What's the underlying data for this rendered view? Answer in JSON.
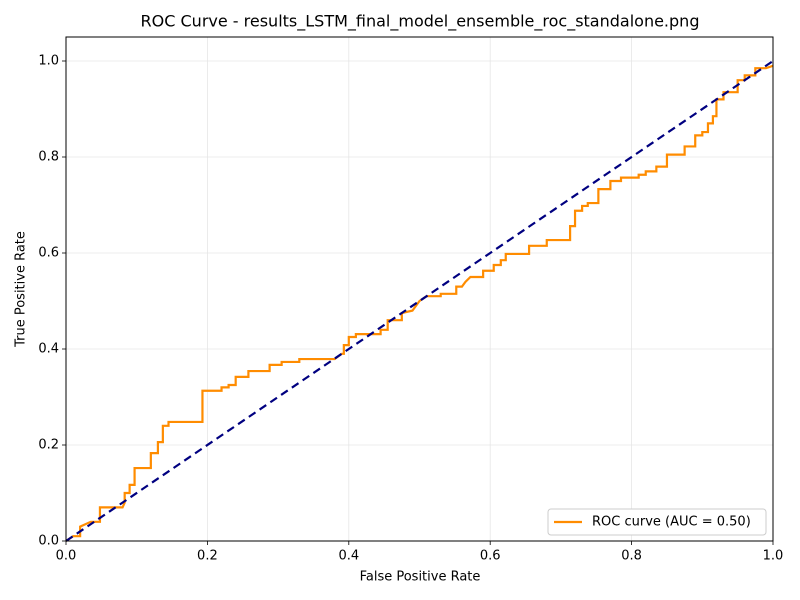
{
  "chart_data": {
    "type": "line",
    "title": "ROC Curve - results_LSTM_final_model_ensemble_roc_standalone.png",
    "x_label": "False Positive Rate",
    "y_label": "True Positive Rate",
    "xlim": [
      0,
      1
    ],
    "ylim": [
      0,
      1.05
    ],
    "xticks": [
      {
        "value": 0,
        "label": "0.0"
      },
      0.2,
      0.4,
      0.6,
      0.8,
      {
        "value": 1,
        "label": "1.0"
      }
    ],
    "yticks": [
      {
        "value": 0,
        "label": "0.0"
      },
      0.2,
      0.4,
      0.6,
      0.8,
      {
        "value": 1,
        "label": "1.0"
      }
    ],
    "grid": true,
    "legend": "lower right",
    "series": [
      {
        "name": "ROC curve (AUC = 0.50)",
        "color": "#ff8c00",
        "x": [
          0,
          0.01,
          0.02,
          0.02,
          0.035,
          0.048,
          0.048,
          0.08,
          0.083,
          0.083,
          0.09,
          0.09,
          0.097,
          0.097,
          0.12,
          0.12,
          0.13,
          0.13,
          0.137,
          0.137,
          0.145,
          0.145,
          0.193,
          0.193,
          0.22,
          0.22,
          0.23,
          0.23,
          0.24,
          0.24,
          0.258,
          0.258,
          0.288,
          0.288,
          0.305,
          0.305,
          0.33,
          0.33,
          0.38,
          0.39,
          0.393,
          0.393,
          0.4,
          0.4,
          0.41,
          0.41,
          0.445,
          0.445,
          0.455,
          0.455,
          0.475,
          0.475,
          0.49,
          0.5,
          0.51,
          0.53,
          0.53,
          0.552,
          0.552,
          0.56,
          0.565,
          0.572,
          0.59,
          0.59,
          0.605,
          0.605,
          0.615,
          0.615,
          0.622,
          0.622,
          0.655,
          0.655,
          0.68,
          0.68,
          0.713,
          0.713,
          0.72,
          0.72,
          0.73,
          0.73,
          0.738,
          0.738,
          0.753,
          0.753,
          0.77,
          0.77,
          0.785,
          0.785,
          0.81,
          0.81,
          0.82,
          0.82,
          0.835,
          0.835,
          0.85,
          0.85,
          0.875,
          0.875,
          0.89,
          0.89,
          0.9,
          0.9,
          0.908,
          0.908,
          0.915,
          0.915,
          0.92,
          0.92,
          0.93,
          0.93,
          0.95,
          0.95,
          0.96,
          0.96,
          0.975,
          0.975,
          0.99,
          1
        ],
        "values": [
          0,
          0.01,
          0.01,
          0.03,
          0.04,
          0.04,
          0.07,
          0.07,
          0.08,
          0.1,
          0.1,
          0.117,
          0.117,
          0.152,
          0.152,
          0.183,
          0.183,
          0.206,
          0.206,
          0.24,
          0.24,
          0.248,
          0.248,
          0.313,
          0.313,
          0.32,
          0.32,
          0.325,
          0.325,
          0.342,
          0.342,
          0.354,
          0.354,
          0.367,
          0.367,
          0.373,
          0.373,
          0.379,
          0.379,
          0.39,
          0.39,
          0.408,
          0.408,
          0.425,
          0.425,
          0.431,
          0.431,
          0.44,
          0.44,
          0.46,
          0.46,
          0.475,
          0.48,
          0.5,
          0.51,
          0.51,
          0.515,
          0.515,
          0.53,
          0.53,
          0.54,
          0.55,
          0.55,
          0.563,
          0.563,
          0.575,
          0.575,
          0.585,
          0.585,
          0.598,
          0.598,
          0.615,
          0.615,
          0.627,
          0.627,
          0.656,
          0.656,
          0.688,
          0.688,
          0.698,
          0.698,
          0.704,
          0.704,
          0.733,
          0.733,
          0.75,
          0.75,
          0.757,
          0.757,
          0.763,
          0.763,
          0.77,
          0.77,
          0.78,
          0.78,
          0.805,
          0.805,
          0.822,
          0.822,
          0.845,
          0.845,
          0.852,
          0.852,
          0.87,
          0.87,
          0.885,
          0.885,
          0.92,
          0.92,
          0.935,
          0.935,
          0.96,
          0.96,
          0.97,
          0.97,
          0.985,
          0.985,
          0.99
        ]
      },
      {
        "color": "#000080",
        "dashed": true,
        "x": [
          0,
          1
        ],
        "values": [
          0,
          1
        ]
      }
    ]
  }
}
